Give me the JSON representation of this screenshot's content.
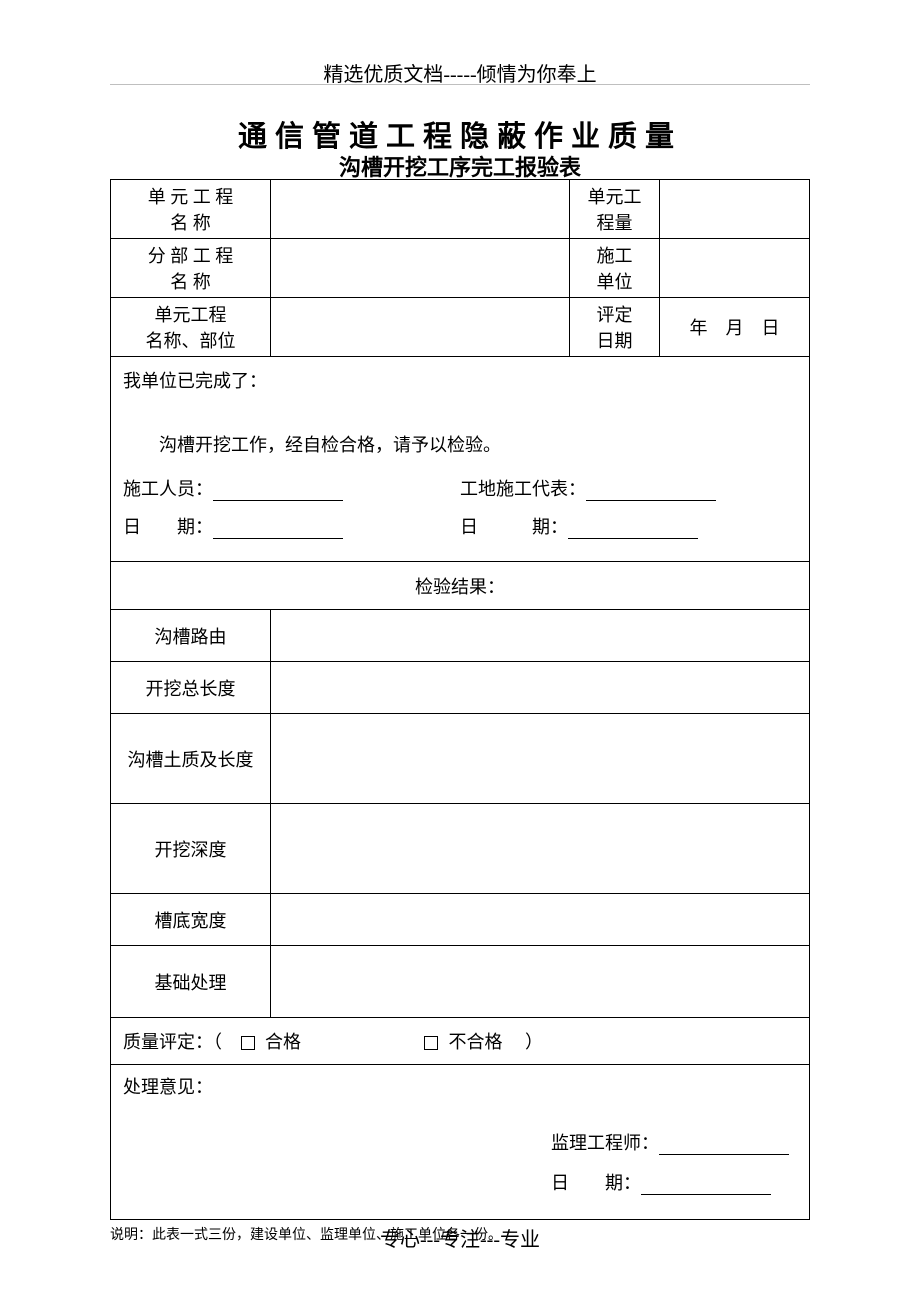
{
  "header": {
    "top_text": "精选优质文档-----倾情为你奉上",
    "title": "通信管道工程隐蔽作业质量",
    "subtitle": "沟槽开挖工序完工报验表"
  },
  "form": {
    "row1": {
      "label1_line1": "单 元 工 程",
      "label1_line2": "名 称",
      "label2_line1": "单元工",
      "label2_line2": "程量"
    },
    "row2": {
      "label1_line1": "分 部 工 程",
      "label1_line2": "名 称",
      "label2_line1": "施工",
      "label2_line2": "单位"
    },
    "row3": {
      "label1_line1": "单元工程",
      "label1_line2": "名称、部位",
      "label2_line1": "评定",
      "label2_line2": "日期",
      "date_value": "年　月　日"
    },
    "body": {
      "completed": "我单位已完成了：",
      "desc": "沟槽开挖工作，经自检合格，请予以检验。",
      "person_label": "施工人员：",
      "rep_label": "工地施工代表：",
      "date_label_left": "日　　期：",
      "date_label_right": "日　　　期："
    },
    "inspection": {
      "header": "检验结果：",
      "items": {
        "r1": "沟槽路由",
        "r2": "开挖总长度",
        "r3": "沟槽土质及长度",
        "r4": "开挖深度",
        "r5": "槽底宽度",
        "r6": "基础处理"
      }
    },
    "quality": {
      "label": "质量评定：（",
      "opt1": "合格",
      "opt2": "不合格",
      "close": "）"
    },
    "opinion": {
      "label": "处理意见：",
      "engineer": "监理工程师：",
      "date": "日　　期："
    }
  },
  "note": "说明：此表一式三份，建设单位、监理单位、施工单位各一份。",
  "footer": "专心---专注---专业",
  "layout": {
    "col_label_w": 160,
    "col_label2_w": 90,
    "col_val2_w": 150
  }
}
